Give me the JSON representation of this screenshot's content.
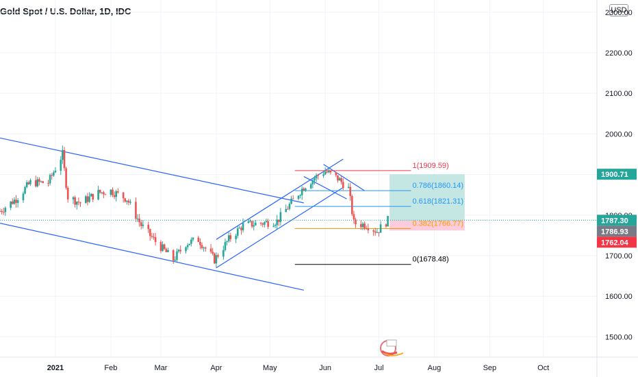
{
  "header": {
    "title": "Gold Spot / U.S. Dollar, 1D, IDC",
    "currency": "USD"
  },
  "colors": {
    "candle_up": "#26a69a",
    "candle_down": "#ef5350",
    "channel": "#2962ff",
    "fib_1": "#f23645",
    "fib_0786": "#2196f3",
    "fib_0618": "#2196f3",
    "fib_0382": "#ff9800",
    "fib_0": "#000000",
    "target_zone": "#b2dfdb",
    "stop_zone": "#f8bbd0",
    "badge_target": "#26a69a",
    "badge_price": "#26a69a",
    "badge_entry": "#787b86",
    "badge_stop": "#f23645"
  },
  "chart_data": {
    "type": "candlestick",
    "title": "Gold Spot / U.S. Dollar, 1D, IDC",
    "x_tick_labels": [
      "2021",
      "Feb",
      "Mar",
      "Apr",
      "May",
      "Jun",
      "Jul",
      "Aug",
      "Sep",
      "Oct"
    ],
    "y_tick_labels": [
      "2300.00",
      "2200.00",
      "2100.00",
      "2000.00",
      "1900.00",
      "1800.00",
      "1700.00",
      "1600.00",
      "1500.00"
    ],
    "y_ticks": [
      2300,
      2200,
      2100,
      2000,
      1900,
      1800,
      1700,
      1600,
      1500
    ],
    "ylim": [
      1450,
      2330
    ],
    "x_range": [
      "2020-12-01",
      "2021-10-31"
    ],
    "grid": true,
    "close_path": [
      [
        "2020-12-01",
        1810
      ],
      [
        "2020-12-10",
        1840
      ],
      [
        "2020-12-18",
        1880
      ],
      [
        "2020-12-28",
        1880
      ],
      [
        "2021-01-05",
        1950
      ],
      [
        "2021-01-06",
        1910
      ],
      [
        "2021-01-08",
        1845
      ],
      [
        "2021-01-15",
        1830
      ],
      [
        "2021-01-25",
        1855
      ],
      [
        "2021-02-01",
        1860
      ],
      [
        "2021-02-10",
        1840
      ],
      [
        "2021-02-18",
        1775
      ],
      [
        "2021-02-26",
        1735
      ],
      [
        "2021-03-08",
        1690
      ],
      [
        "2021-03-15",
        1730
      ],
      [
        "2021-03-22",
        1740
      ],
      [
        "2021-03-31",
        1690
      ],
      [
        "2021-04-08",
        1740
      ],
      [
        "2021-04-16",
        1775
      ],
      [
        "2021-04-26",
        1780
      ],
      [
        "2021-05-05",
        1785
      ],
      [
        "2021-05-12",
        1825
      ],
      [
        "2021-05-20",
        1870
      ],
      [
        "2021-05-27",
        1895
      ],
      [
        "2021-06-01",
        1908
      ],
      [
        "2021-06-08",
        1890
      ],
      [
        "2021-06-14",
        1865
      ],
      [
        "2021-06-17",
        1780
      ],
      [
        "2021-06-24",
        1776
      ],
      [
        "2021-06-30",
        1760
      ],
      [
        "2021-07-06",
        1787
      ]
    ],
    "channels": [
      {
        "name": "descending channel upper",
        "points": [
          [
            "2020-12-01",
            1990
          ],
          [
            "2021-05-20",
            1830
          ]
        ]
      },
      {
        "name": "descending channel lower",
        "points": [
          [
            "2020-12-01",
            1780
          ],
          [
            "2021-05-20",
            1615
          ]
        ]
      },
      {
        "name": "rising channel upper",
        "points": [
          [
            "2021-04-01",
            1740
          ],
          [
            "2021-06-11",
            1938
          ]
        ]
      },
      {
        "name": "rising channel lower",
        "points": [
          [
            "2021-04-01",
            1670
          ],
          [
            "2021-06-11",
            1868
          ]
        ]
      },
      {
        "name": "top channel A",
        "points": [
          [
            "2021-05-31",
            1925
          ],
          [
            "2021-06-23",
            1860
          ]
        ]
      },
      {
        "name": "top channel B",
        "points": [
          [
            "2021-05-20",
            1895
          ],
          [
            "2021-06-13",
            1840
          ]
        ]
      }
    ],
    "fibonacci": {
      "range": [
        "2021-05-15",
        "2021-07-19"
      ],
      "levels": [
        {
          "ratio": 1,
          "price": 1909.59,
          "label": "1(1909.59)"
        },
        {
          "ratio": 0.786,
          "price": 1860.14,
          "label": "0.786(1860.14)"
        },
        {
          "ratio": 0.618,
          "price": 1821.31,
          "label": "0.618(1821.31)"
        },
        {
          "ratio": 0.382,
          "price": 1766.77,
          "label": "0.382(1766.77)"
        },
        {
          "ratio": 0,
          "price": 1678.48,
          "label": "0(1678.48)"
        }
      ]
    },
    "position": {
      "start": "2021-07-07",
      "end": "2021-08-18",
      "entry": 1786.93,
      "target": 1900.71,
      "stop": 1762.04
    },
    "current_price": 1787.3,
    "price_badges": [
      "1900.71",
      "1787.30",
      "1786.93",
      "1762.04"
    ]
  }
}
